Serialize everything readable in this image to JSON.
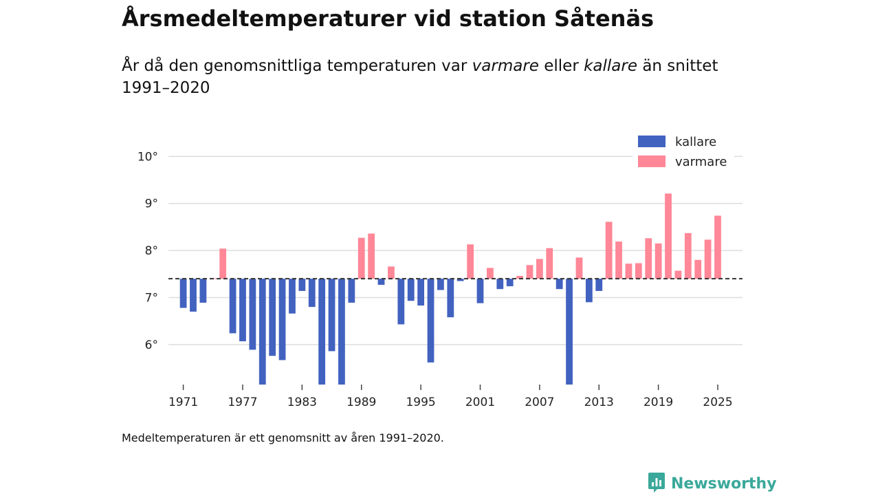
{
  "header": {
    "title": "Årsmedeltemperaturer vid station Såtenäs",
    "subtitle_part1": "År då den genomsnittliga temperaturen var ",
    "subtitle_warmer": "varmare",
    "subtitle_part2": " eller ",
    "subtitle_colder": "kallare",
    "subtitle_part3": " än snittet 1991–2020"
  },
  "footnote": "Medeltemperaturen är ett genomsnitt av åren 1991–2020.",
  "brand": {
    "name": "Newsworthy",
    "icon": "newsworthy-logo-icon"
  },
  "colors": {
    "colder": "#4262c0",
    "warmer": "#ff8797",
    "grid": "#dddddd",
    "baseline": "#333333",
    "brand": "#3aa89a"
  },
  "chart_data": {
    "type": "bar",
    "title": "Årsmedeltemperaturer vid station Såtenäs",
    "xlabel": "",
    "ylabel": "",
    "baseline": 7.4,
    "ylim": [
      5.15,
      10.4
    ],
    "xlim": [
      1969.5,
      2027.5
    ],
    "yticks": [
      6,
      7,
      8,
      9,
      10
    ],
    "ytick_labels": [
      "6°",
      "7°",
      "8°",
      "9°",
      "10°"
    ],
    "xticks": [
      1971,
      1977,
      1983,
      1989,
      1995,
      2001,
      2007,
      2013,
      2019,
      2025
    ],
    "xtick_labels": [
      "1971",
      "1977",
      "1983",
      "1989",
      "1995",
      "2001",
      "2007",
      "2013",
      "2019",
      "2025"
    ],
    "legend": {
      "position": "top-right",
      "entries": [
        {
          "key": "colder",
          "label": "kallare"
        },
        {
          "key": "warmer",
          "label": "varmare"
        }
      ]
    },
    "years": [
      1971,
      1972,
      1973,
      1974,
      1975,
      1976,
      1977,
      1978,
      1979,
      1980,
      1981,
      1982,
      1983,
      1984,
      1985,
      1986,
      1987,
      1988,
      1989,
      1990,
      1991,
      1992,
      1993,
      1994,
      1995,
      1996,
      1997,
      1998,
      1999,
      2000,
      2001,
      2002,
      2003,
      2004,
      2005,
      2006,
      2007,
      2008,
      2009,
      2010,
      2011,
      2012,
      2013,
      2014,
      2015,
      2016,
      2017,
      2018,
      2019,
      2020,
      2021,
      2022,
      2023,
      2024,
      2025
    ],
    "values": [
      6.78,
      6.7,
      6.89,
      7.41,
      8.04,
      6.24,
      6.07,
      5.89,
      5.15,
      5.76,
      5.67,
      6.66,
      7.14,
      6.8,
      5.15,
      5.86,
      5.15,
      6.89,
      8.27,
      8.36,
      7.27,
      7.66,
      6.43,
      6.93,
      6.83,
      5.62,
      7.16,
      6.58,
      7.35,
      8.13,
      6.88,
      7.63,
      7.18,
      7.24,
      7.46,
      7.69,
      7.82,
      8.05,
      7.18,
      5.15,
      7.85,
      6.9,
      7.14,
      8.61,
      8.19,
      7.72,
      7.73,
      8.26,
      8.15,
      9.21,
      7.57,
      8.37,
      7.8,
      8.23,
      8.74
    ]
  }
}
